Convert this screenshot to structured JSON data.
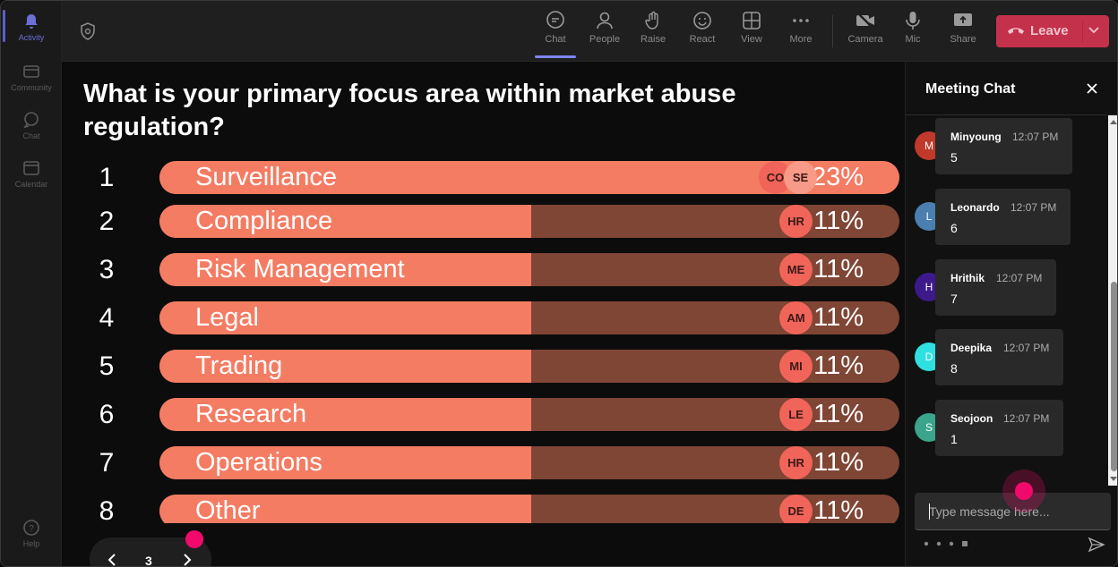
{
  "rail": {
    "items": [
      {
        "label": "Activity",
        "icon": "bell-icon",
        "active": true
      },
      {
        "label": "Community",
        "icon": "community-icon",
        "active": false
      },
      {
        "label": "Chat",
        "icon": "chat-icon",
        "active": false
      },
      {
        "label": "Calendar",
        "icon": "calendar-icon",
        "active": false
      }
    ],
    "help": "Help"
  },
  "toolbar": {
    "chat": "Chat",
    "people": "People",
    "raise": "Raise",
    "react": "React",
    "view": "View",
    "more": "More",
    "camera": "Camera",
    "mic": "Mic",
    "share": "Share",
    "leave": "Leave"
  },
  "poll": {
    "question": "What is your primary focus area within market abuse regulation?",
    "options": [
      {
        "num": "1",
        "label": "Surveillance",
        "percent": "23%",
        "fraction": 1.0,
        "avatars": [
          "CO",
          "SE"
        ]
      },
      {
        "num": "2",
        "label": "Compliance",
        "percent": "11%",
        "fraction": 0.503,
        "avatars": [
          "HR"
        ]
      },
      {
        "num": "3",
        "label": "Risk Management",
        "percent": "11%",
        "fraction": 0.503,
        "avatars": [
          "ME"
        ]
      },
      {
        "num": "4",
        "label": "Legal",
        "percent": "11%",
        "fraction": 0.503,
        "avatars": [
          "AM"
        ]
      },
      {
        "num": "5",
        "label": "Trading",
        "percent": "11%",
        "fraction": 0.503,
        "avatars": [
          "MI"
        ]
      },
      {
        "num": "6",
        "label": "Research",
        "percent": "11%",
        "fraction": 0.503,
        "avatars": [
          "LE"
        ]
      },
      {
        "num": "7",
        "label": "Operations",
        "percent": "11%",
        "fraction": 0.503,
        "avatars": [
          "HR"
        ]
      },
      {
        "num": "8",
        "label": "Other",
        "percent": "11%",
        "fraction": 0.503,
        "avatars": [
          "DE"
        ]
      }
    ],
    "page": "3"
  },
  "chat": {
    "title": "Meeting Chat",
    "messages": [
      {
        "initial": "M",
        "name": "Minyoung",
        "time": "12:07 PM",
        "text": "5",
        "color": "#c0392b"
      },
      {
        "initial": "L",
        "name": "Leonardo",
        "time": "12:07 PM",
        "text": "6",
        "color": "#4a7fb0"
      },
      {
        "initial": "H",
        "name": "Hrithik",
        "time": "12:07 PM",
        "text": "7",
        "color": "#3d1a8c"
      },
      {
        "initial": "D",
        "name": "Deepika",
        "time": "12:07 PM",
        "text": "8",
        "color": "#2ee0e0"
      },
      {
        "initial": "S",
        "name": "Seojoon",
        "time": "12:07 PM",
        "text": "1",
        "color": "#3aa58a"
      }
    ],
    "placeholder": "Type message here..."
  },
  "colors": {
    "bar_fill": "#f47c63",
    "bar_track": "#7f4535",
    "leave": "#c4314b",
    "accent": "#5b5fc7"
  }
}
